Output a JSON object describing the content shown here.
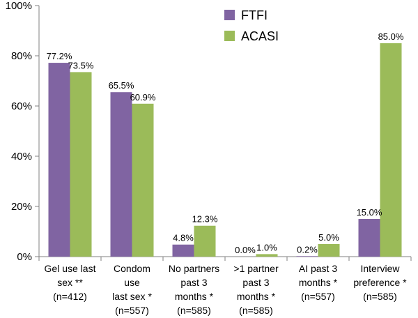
{
  "chart_data": {
    "type": "bar",
    "title": "",
    "xlabel": "",
    "ylabel": "",
    "ylim": [
      0,
      100
    ],
    "yticks": [
      0,
      20,
      40,
      60,
      80,
      100
    ],
    "y_tick_labels": [
      "0%",
      "20%",
      "40%",
      "60%",
      "80%",
      "100%"
    ],
    "grid": false,
    "legend_position": "top-center",
    "categories": [
      [
        "Gel use last",
        "sex **",
        "(n=412)"
      ],
      [
        "Condom",
        "use",
        "last sex *",
        "(n=557)"
      ],
      [
        "No partners",
        "past 3",
        "months *",
        "(n=585)"
      ],
      [
        ">1 partner",
        "past 3",
        "months *",
        "(n=585)"
      ],
      [
        "AI past 3",
        "months *",
        "(n=557)"
      ],
      [
        "Interview",
        "preference *",
        "(n=585)"
      ]
    ],
    "series": [
      {
        "name": "FTFI",
        "color": "#8064A2",
        "values": [
          77.2,
          65.5,
          4.8,
          0.0,
          0.2,
          15.0
        ],
        "labels": [
          "77.2%",
          "65.5%",
          "4.8%",
          "0.0%",
          "0.2%",
          "15.0%"
        ]
      },
      {
        "name": "ACASI",
        "color": "#9BBB59",
        "values": [
          73.5,
          60.9,
          12.3,
          1.0,
          5.0,
          85.0
        ],
        "labels": [
          "73.5%",
          "60.9%",
          "12.3%",
          "1.0%",
          "5.0%",
          "85.0%"
        ]
      }
    ]
  }
}
